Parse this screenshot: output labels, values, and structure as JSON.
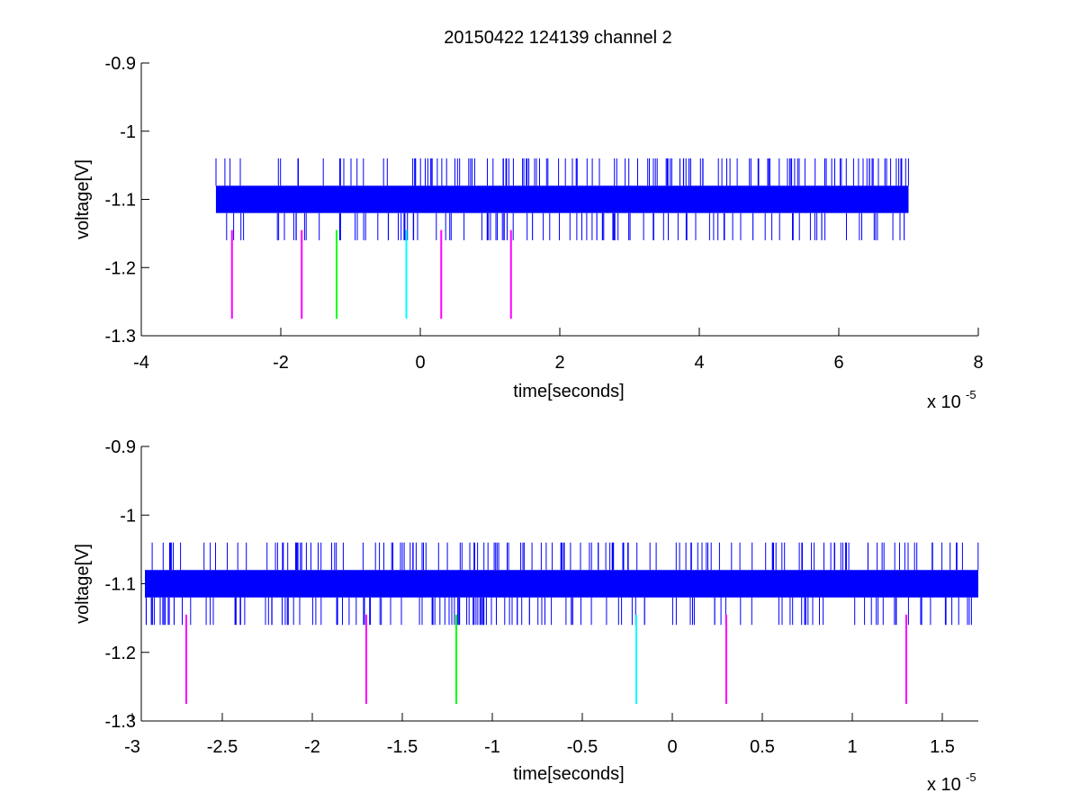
{
  "title": "20150422 124139 channel 2",
  "colors": {
    "signal": "#0000ff",
    "marker_magenta": "#ff00ff",
    "marker_green": "#00ff00",
    "marker_cyan": "#00ffff",
    "axis": "#000000",
    "background": "#ffffff"
  },
  "chart_data": [
    {
      "type": "line",
      "title": "20150422 124139 channel 2",
      "xlabel": "time[seconds]",
      "ylabel": "voltage[V]",
      "x_exponent_label": "x 10",
      "x_exponent_power": "-5",
      "xlim": [
        -4,
        8
      ],
      "ylim": [
        -1.3,
        -0.9
      ],
      "xticks": [
        -4,
        -2,
        0,
        2,
        4,
        6,
        8
      ],
      "xtick_labels": [
        "-4",
        "-2",
        "0",
        "2",
        "4",
        "6",
        "8"
      ],
      "yticks": [
        -0.9,
        -1.0,
        -1.1,
        -1.2,
        -1.3
      ],
      "ytick_labels": [
        "-0.9",
        "-1",
        "-1.1",
        "-1.2",
        "-1.3"
      ],
      "grid": false,
      "series": [
        {
          "color": "#0000ff",
          "x_range": [
            -2.93,
            7.0
          ],
          "band": [
            -1.12,
            -1.08
          ],
          "spike_range": [
            -1.16,
            -1.04
          ]
        }
      ],
      "markers": [
        {
          "x": -2.7,
          "y_range": [
            -1.275,
            -1.145
          ],
          "color": "#ff00ff"
        },
        {
          "x": -1.7,
          "y_range": [
            -1.275,
            -1.145
          ],
          "color": "#ff00ff"
        },
        {
          "x": -1.2,
          "y_range": [
            -1.275,
            -1.145
          ],
          "color": "#00ff00"
        },
        {
          "x": -0.2,
          "y_range": [
            -1.275,
            -1.145
          ],
          "color": "#00ffff"
        },
        {
          "x": 0.3,
          "y_range": [
            -1.275,
            -1.145
          ],
          "color": "#ff00ff"
        },
        {
          "x": 1.3,
          "y_range": [
            -1.275,
            -1.145
          ],
          "color": "#ff00ff"
        }
      ]
    },
    {
      "type": "line",
      "xlabel": "time[seconds]",
      "ylabel": "voltage[V]",
      "x_exponent_label": "x 10",
      "x_exponent_power": "-5",
      "xlim": [
        -2.95,
        1.7
      ],
      "ylim": [
        -1.3,
        -0.9
      ],
      "xticks": [
        -3,
        -2.5,
        -2,
        -1.5,
        -1,
        -0.5,
        0,
        0.5,
        1,
        1.5
      ],
      "xtick_labels": [
        "-3",
        "-2.5",
        "-2",
        "-1.5",
        "-1",
        "-0.5",
        "0",
        "0.5",
        "1",
        "1.5"
      ],
      "yticks": [
        -0.9,
        -1.0,
        -1.1,
        -1.2,
        -1.3
      ],
      "ytick_labels": [
        "-0.9",
        "-1",
        "-1.1",
        "-1.2",
        "-1.3"
      ],
      "grid": false,
      "series": [
        {
          "color": "#0000ff",
          "x_range": [
            -2.93,
            1.7
          ],
          "band": [
            -1.12,
            -1.08
          ],
          "spike_range": [
            -1.16,
            -1.04
          ]
        }
      ],
      "markers": [
        {
          "x": -2.7,
          "y_range": [
            -1.275,
            -1.145
          ],
          "color": "#ff00ff"
        },
        {
          "x": -1.7,
          "y_range": [
            -1.275,
            -1.145
          ],
          "color": "#ff00ff"
        },
        {
          "x": -1.2,
          "y_range": [
            -1.275,
            -1.145
          ],
          "color": "#00ff00"
        },
        {
          "x": -0.2,
          "y_range": [
            -1.275,
            -1.145
          ],
          "color": "#00ffff"
        },
        {
          "x": 0.3,
          "y_range": [
            -1.275,
            -1.145
          ],
          "color": "#ff00ff"
        },
        {
          "x": 1.3,
          "y_range": [
            -1.275,
            -1.145
          ],
          "color": "#ff00ff"
        }
      ]
    }
  ]
}
